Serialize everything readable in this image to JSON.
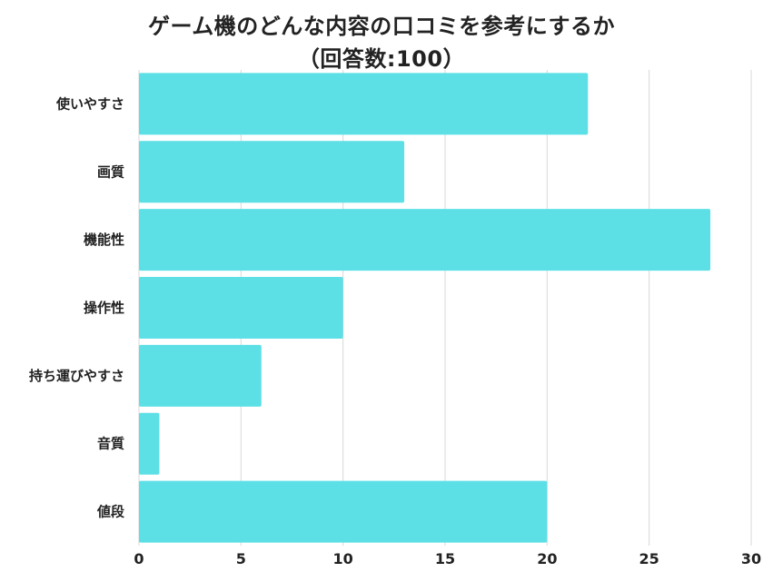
{
  "chart_data": {
    "type": "bar",
    "orientation": "horizontal",
    "title": "ゲーム機のどんな内容の口コミを参考にするか",
    "subtitle": "（回答数:100）",
    "categories": [
      "使いやすさ",
      "画質",
      "機能性",
      "操作性",
      "持ち運びやすさ",
      "音質",
      "値段"
    ],
    "values": [
      22,
      13,
      28,
      10,
      6,
      1,
      20
    ],
    "xlim": [
      0,
      30
    ],
    "xticks": [
      "0",
      "5",
      "10",
      "15",
      "20",
      "25",
      "30"
    ],
    "grid": "vertical",
    "bar_color": "#5ce0e6",
    "grid_color": "#d9d9d9"
  }
}
